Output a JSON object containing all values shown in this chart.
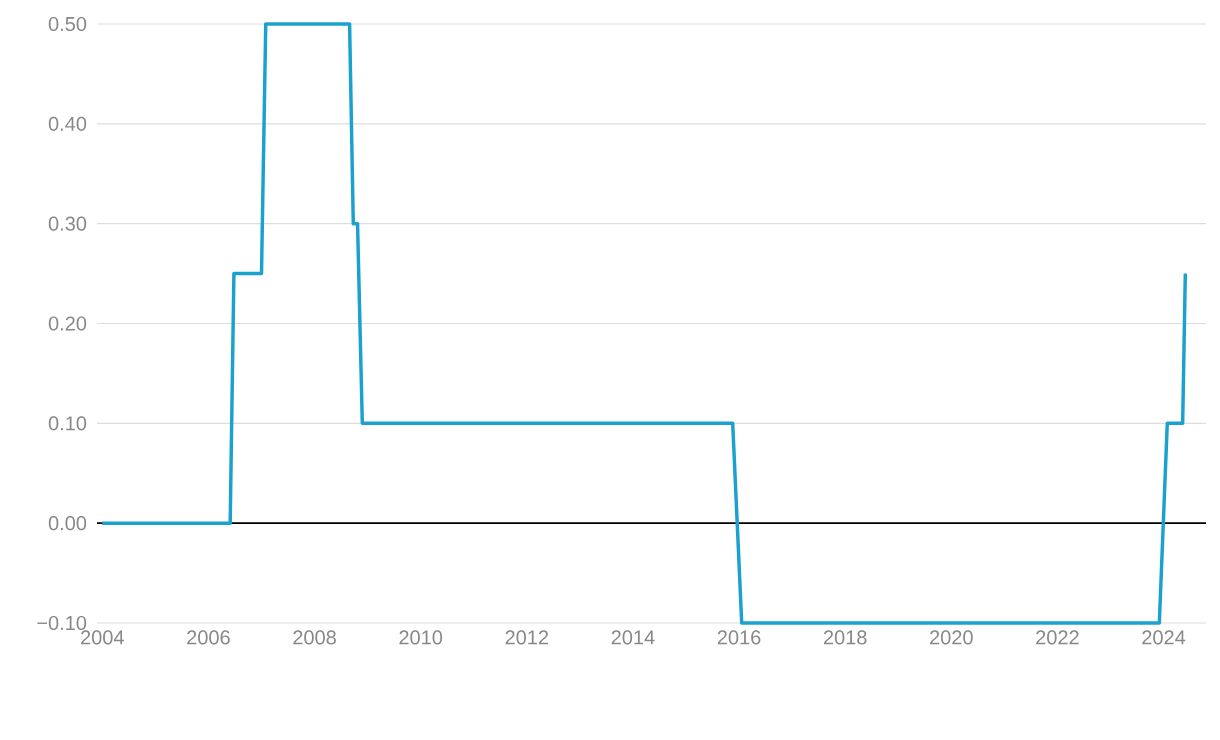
{
  "chart_data": {
    "type": "line",
    "x": [
      2004.0,
      2006.41,
      2006.48,
      2007.0,
      2007.08,
      2008.66,
      2008.73,
      2008.81,
      2008.9,
      2015.88,
      2016.05,
      2023.92,
      2024.07,
      2024.36,
      2024.41
    ],
    "series": [
      {
        "color": "#1ba1cd",
        "values": [
          0,
          0,
          0.25,
          0.25,
          0.5,
          0.5,
          0.3,
          0.3,
          0.1,
          0.1,
          -0.1,
          -0.1,
          0.1,
          0.1,
          0.25
        ]
      }
    ],
    "xlim": [
      2003.9,
      2024.8
    ],
    "xticks": [
      2004,
      2006,
      2008,
      2010,
      2012,
      2014,
      2016,
      2018,
      2020,
      2022,
      2024
    ],
    "ylim": [
      -0.1,
      0.5
    ],
    "yticks": [
      {
        "value": -0.1,
        "label": "−0.10"
      },
      {
        "value": 0,
        "label": "0.00"
      },
      {
        "value": 0.1,
        "label": "0.10"
      },
      {
        "value": 0.2,
        "label": "0.20"
      },
      {
        "value": 0.3,
        "label": "0.30"
      },
      {
        "value": 0.4,
        "label": "0.40"
      },
      {
        "value": 0.5,
        "label": "0.50"
      }
    ],
    "grid": "y",
    "ref_lines": [
      {
        "axis": "y",
        "value": 0,
        "color": "#000000"
      }
    ]
  }
}
